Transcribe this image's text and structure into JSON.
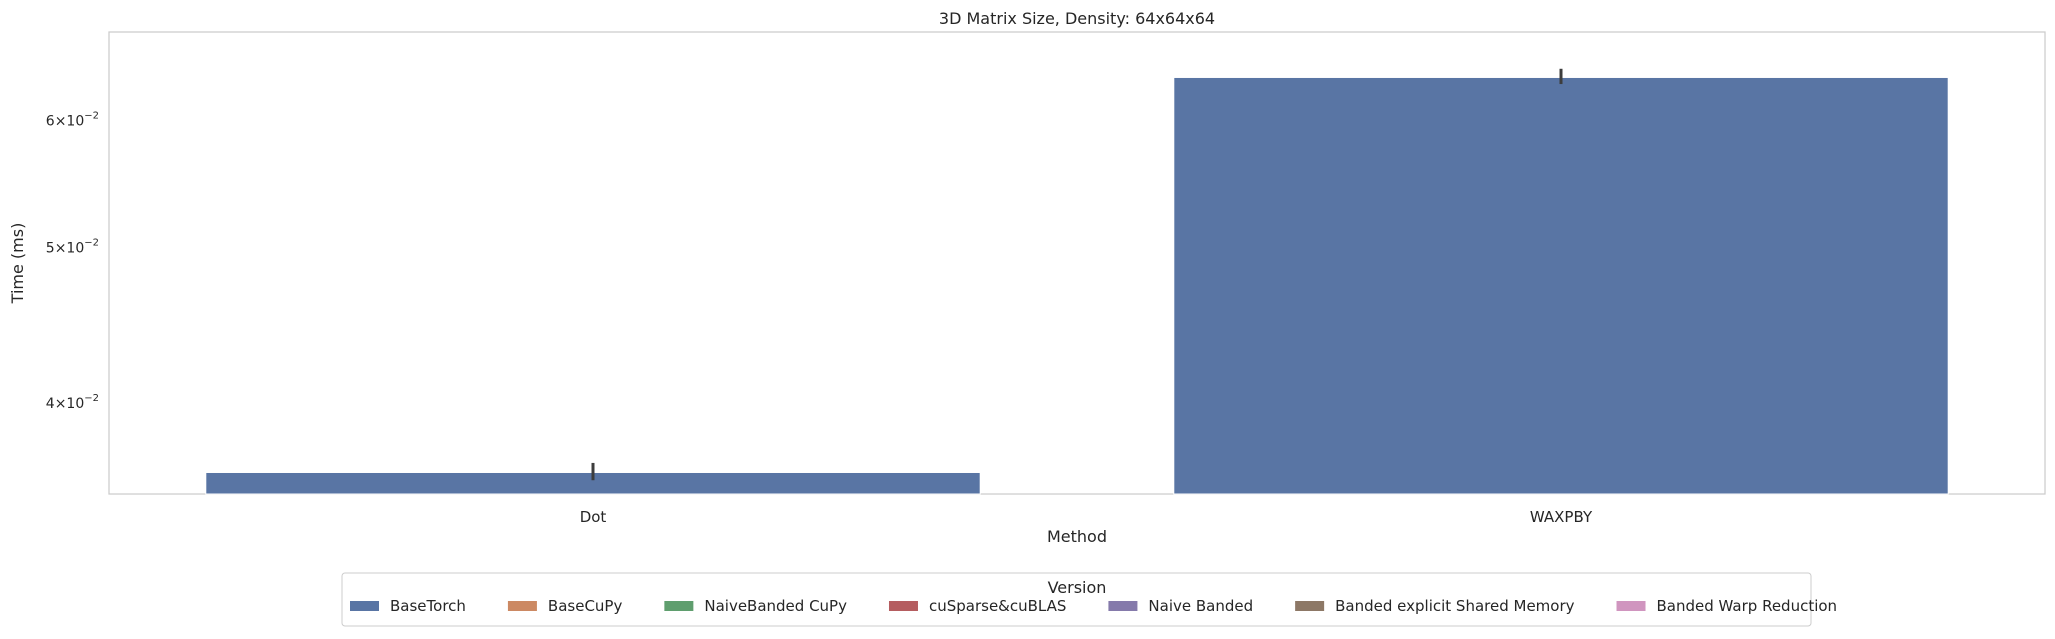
{
  "chart_data": {
    "type": "bar",
    "title": "3D Matrix Size, Density: 64x64x64",
    "xlabel": "Method",
    "ylabel": "Time (ms)",
    "yscale": "log",
    "ylim": [
      0.0351,
      0.0681
    ],
    "grid": false,
    "categories": [
      "Dot",
      "WAXPBY"
    ],
    "series": [
      {
        "name": "BaseTorch",
        "color": "#5975a4",
        "values": [
          0.0362,
          0.0638
        ],
        "errors": [
          [
            0.0358,
            0.0367
          ],
          [
            0.0632,
            0.0646
          ]
        ]
      },
      {
        "name": "BaseCuPy",
        "color": "#cc8963",
        "values": [
          null,
          null
        ]
      },
      {
        "name": "NaiveBanded CuPy",
        "color": "#5f9e6e",
        "values": [
          null,
          null
        ]
      },
      {
        "name": "cuSparse&cuBLAS",
        "color": "#b55d60",
        "values": [
          null,
          null
        ]
      },
      {
        "name": "Naive Banded",
        "color": "#857aab",
        "values": [
          null,
          null
        ]
      },
      {
        "name": "Banded explicit Shared Memory",
        "color": "#8d7866",
        "values": [
          null,
          null
        ]
      },
      {
        "name": "Banded Warp Reduction",
        "color": "#d095bf",
        "values": [
          null,
          null
        ]
      }
    ],
    "yticks": [
      {
        "value": 0.04,
        "mantissa": "4",
        "base": "10",
        "exp": "−2"
      },
      {
        "value": 0.05,
        "mantissa": "5",
        "base": "10",
        "exp": "−2"
      },
      {
        "value": 0.06,
        "mantissa": "6",
        "base": "10",
        "exp": "−2"
      }
    ],
    "legend": {
      "title": "Version",
      "placement": "lower-center"
    }
  }
}
